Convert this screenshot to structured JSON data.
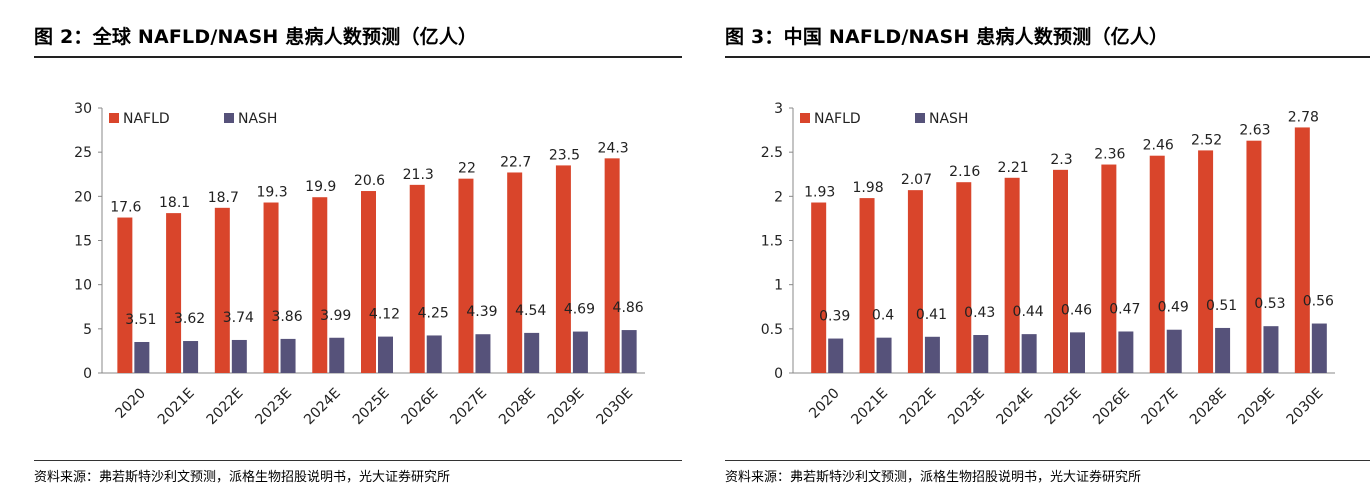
{
  "figures": [
    {
      "title": "图 2：全球 NAFLD/NASH 患病人数预测（亿人）",
      "source": "资料来源：弗若斯特沙利文预测，派格生物招股说明书，光大证券研究所"
    },
    {
      "title": "图 3：中国 NAFLD/NASH 患病人数预测（亿人）",
      "source": "资料来源：弗若斯特沙利文预测，派格生物招股说明书，光大证券研究所"
    }
  ],
  "colors": {
    "nafld": "#d9452b",
    "nash": "#56527a"
  },
  "chart_data": [
    {
      "type": "bar",
      "title": "图 2：全球 NAFLD/NASH 患病人数预测（亿人）",
      "categories": [
        "2020",
        "2021E",
        "2022E",
        "2023E",
        "2024E",
        "2025E",
        "2026E",
        "2027E",
        "2028E",
        "2029E",
        "2030E"
      ],
      "series": [
        {
          "name": "NAFLD",
          "values": [
            17.6,
            18.1,
            18.7,
            19.3,
            19.9,
            20.6,
            21.3,
            22,
            22.7,
            23.5,
            24.3
          ]
        },
        {
          "name": "NASH",
          "values": [
            3.51,
            3.62,
            3.74,
            3.86,
            3.99,
            4.12,
            4.25,
            4.39,
            4.54,
            4.69,
            4.86
          ]
        }
      ],
      "yticks": [
        "0",
        "5",
        "10",
        "15",
        "20",
        "25",
        "30"
      ],
      "ylim": [
        0,
        30
      ],
      "legend": "top-left",
      "grid": false
    },
    {
      "type": "bar",
      "title": "图 3：中国 NAFLD/NASH 患病人数预测（亿人）",
      "categories": [
        "2020",
        "2021E",
        "2022E",
        "2023E",
        "2024E",
        "2025E",
        "2026E",
        "2027E",
        "2028E",
        "2029E",
        "2030E"
      ],
      "series": [
        {
          "name": "NAFLD",
          "values": [
            1.93,
            1.98,
            2.07,
            2.16,
            2.21,
            2.3,
            2.36,
            2.46,
            2.52,
            2.63,
            2.78
          ]
        },
        {
          "name": "NASH",
          "values": [
            0.39,
            0.4,
            0.41,
            0.43,
            0.44,
            0.46,
            0.47,
            0.49,
            0.51,
            0.53,
            0.56
          ]
        }
      ],
      "yticks": [
        "0",
        "0.5",
        "1",
        "1.5",
        "2",
        "2.5",
        "3"
      ],
      "ylim": [
        0,
        3
      ],
      "legend": "top-left",
      "grid": false
    }
  ]
}
